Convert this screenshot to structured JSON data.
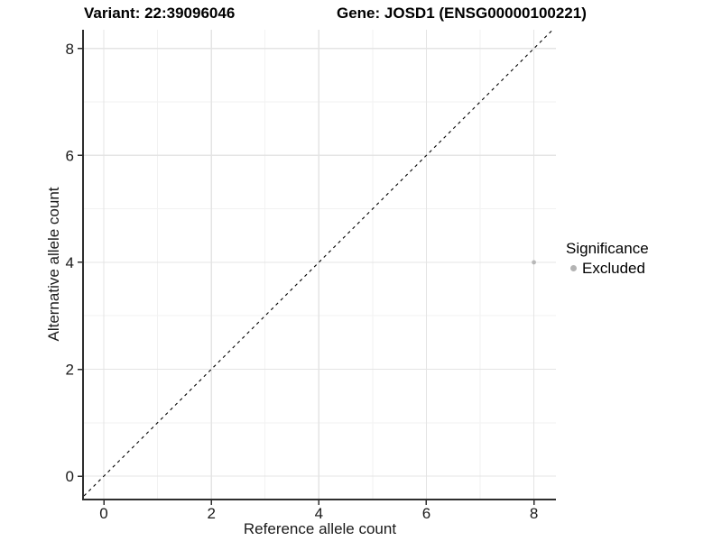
{
  "chart_data": {
    "type": "scatter",
    "titles": {
      "variant": "Variant: 22:39096046",
      "gene": "Gene: JOSD1 (ENSG00000100221)"
    },
    "xlabel": "Reference allele count",
    "ylabel": "Alternative allele count",
    "xlim": [
      -0.37,
      8.41
    ],
    "ylim": [
      -0.42,
      8.35
    ],
    "x_ticks": [
      0,
      2,
      4,
      6,
      8
    ],
    "y_ticks": [
      0,
      2,
      4,
      6,
      8
    ],
    "x_minor_ticks": [
      1,
      3,
      5,
      7
    ],
    "y_minor_ticks": [
      1,
      3,
      5,
      7
    ],
    "grid": "major+minor",
    "reference_line": {
      "slope": 1,
      "intercept": 0,
      "style": "dashed",
      "color": "#000000"
    },
    "series": [
      {
        "name": "Excluded",
        "color": "#b8b8b8",
        "point_radius": 2.4,
        "points": [
          {
            "x": 8,
            "y": 4
          }
        ]
      }
    ],
    "legend": {
      "title": "Significance",
      "position": "right",
      "items": [
        {
          "label": "Excluded",
          "color": "#b3b3b3"
        }
      ]
    },
    "colors": {
      "background": "#ffffff",
      "grid_major": "#e4e4e4",
      "grid_minor": "#f2f2f2",
      "axis_line": "#2e2e2e",
      "tick_text": "#1a1a1a"
    }
  }
}
